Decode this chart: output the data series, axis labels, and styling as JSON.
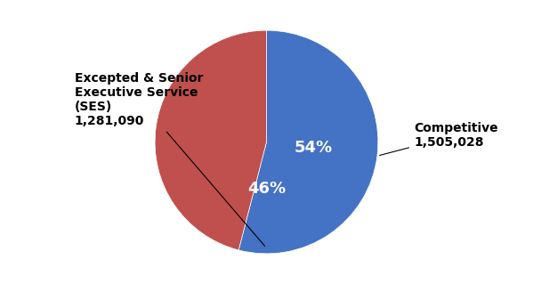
{
  "slices": [
    {
      "label": "Competitive",
      "value": 1505028,
      "pct": 54,
      "color": "#4472C4"
    },
    {
      "label": "Excepted & Senior\nExecutive Service\n(SES)\n1,281,090",
      "value": 1281090,
      "pct": 46,
      "color": "#C0504D"
    }
  ],
  "background_color": "#ffffff",
  "pct_fontsize": 13,
  "label_fontsize": 10,
  "startangle": 90,
  "competitive_mid_deg": -7.2,
  "excepted_mid_deg": -90.0
}
